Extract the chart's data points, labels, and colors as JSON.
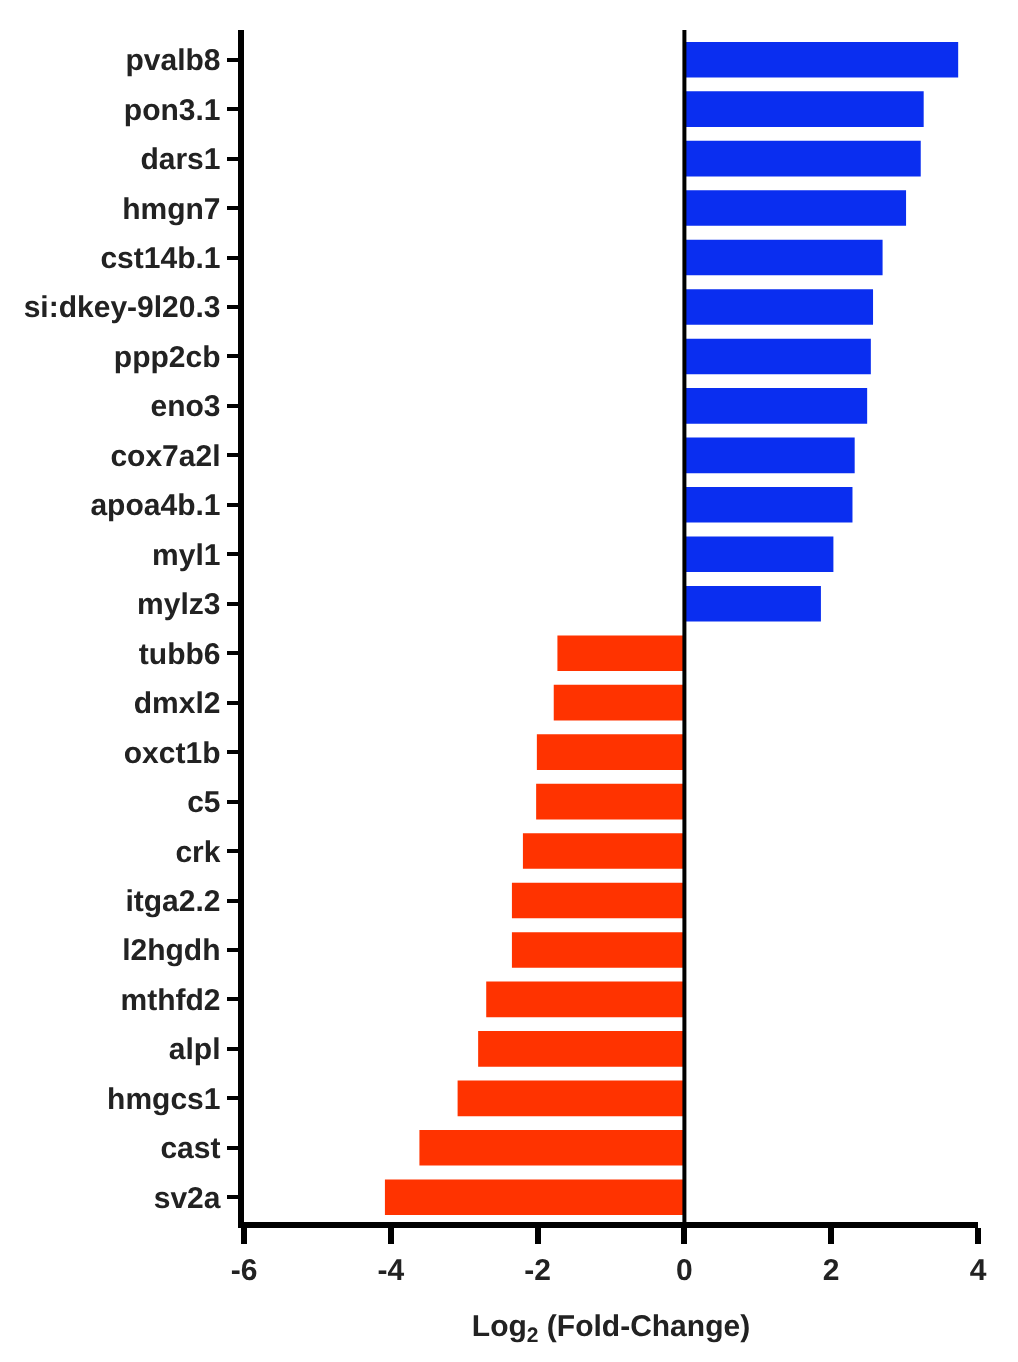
{
  "chart_data": {
    "type": "bar",
    "orientation": "horizontal",
    "xlabel": "Log$_{2}$ (Fold-Change)",
    "categories": [
      "pvalb8",
      "pon3.1",
      "dars1",
      "hmgn7",
      "cst14b.1",
      "si:dkey-9l20.3",
      "ppp2cb",
      "eno3",
      "cox7a2l",
      "apoa4b.1",
      "myl1",
      "mylz3",
      "tubb6",
      "dmxl2",
      "oxct1b",
      "c5",
      "crk",
      "itga2.2",
      "l2hgdh",
      "mthfd2",
      "alpl",
      "hmgcs1",
      "cast",
      "sv2a"
    ],
    "values": [
      3.73,
      3.26,
      3.22,
      3.02,
      2.7,
      2.57,
      2.54,
      2.49,
      2.32,
      2.29,
      2.03,
      1.86,
      -1.73,
      -1.78,
      -2.01,
      -2.02,
      -2.2,
      -2.35,
      -2.35,
      -2.7,
      -2.81,
      -3.09,
      -3.61,
      -4.08
    ],
    "colors": [
      "#0a2ef0",
      "#0a2ef0",
      "#0a2ef0",
      "#0a2ef0",
      "#0a2ef0",
      "#0a2ef0",
      "#0a2ef0",
      "#0a2ef0",
      "#0a2ef0",
      "#0a2ef0",
      "#0a2ef0",
      "#0a2ef0",
      "#ff3300",
      "#ff3300",
      "#ff3300",
      "#ff3300",
      "#ff3300",
      "#ff3300",
      "#ff3300",
      "#ff3300",
      "#ff3300",
      "#ff3300",
      "#ff3300",
      "#ff3300"
    ],
    "xlim": [
      -6,
      4
    ],
    "xticks": [
      -6,
      -4,
      -2,
      0,
      2,
      4
    ],
    "ref_lines": [
      {
        "axis": "x",
        "value": 0,
        "color": "#000000"
      }
    ]
  }
}
